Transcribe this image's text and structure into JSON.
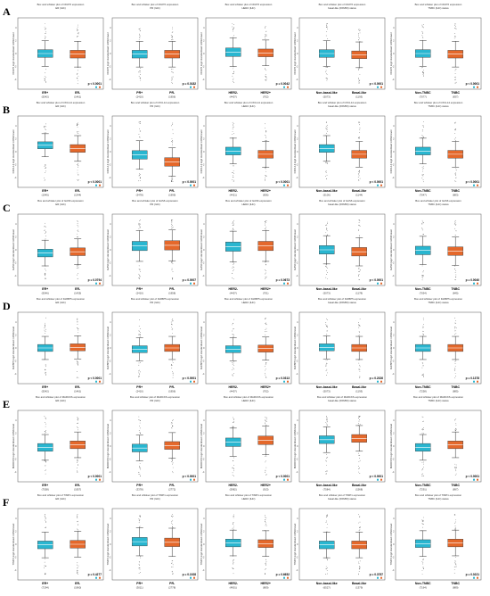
{
  "colors": {
    "group_a": "#29b6d0",
    "group_b": "#e4682b",
    "whisker": "#333333",
    "frame": "#555555",
    "dots": "#444444"
  },
  "rows": [
    {
      "letter": "A",
      "gene": "CD276",
      "panels": [
        {
          "title": "Box and whisker plot of CD276 expression",
          "subtitle": "ER (IHC)",
          "categories": [
            "ER+",
            "ER-"
          ],
          "ns": [
            "(5542)",
            "(1461)"
          ],
          "median": [
            0.0,
            -0.1
          ],
          "spread": [
            1.0,
            1.0
          ],
          "pval": "p < 0.0001"
        },
        {
          "title": "Box and whisker plot of CD276 expression",
          "subtitle": "PR (IHC)",
          "categories": [
            "PR+",
            "PR-"
          ],
          "ns": [
            "(2410)",
            "(1956)"
          ],
          "median": [
            -0.1,
            -0.1
          ],
          "spread": [
            1.0,
            1.0
          ],
          "pval": "p = 0.0182"
        },
        {
          "title": "Box and whisker plot of CD276 expression",
          "subtitle": "HER2 (IHC)",
          "categories": [
            "HER2-",
            "HER2+"
          ],
          "ns": [
            "(4407)",
            "(702)"
          ],
          "median": [
            0.2,
            0.1
          ],
          "spread": [
            1.1,
            1.0
          ],
          "pval": "p = 0.0042"
        },
        {
          "title": "Box and whisker plot of CD276 expression",
          "subtitle": "basal-like (PAM50) status",
          "categories": [
            "Non-basal-like",
            "Basal-like"
          ],
          "ns": [
            "(5073)",
            "(1193)"
          ],
          "median": [
            0.0,
            -0.2
          ],
          "spread": [
            1.0,
            1.0
          ],
          "pval": "p < 0.0001"
        },
        {
          "title": "Box and whisker plot of CD276 expression",
          "subtitle": "TNBC (IHC) status",
          "categories": [
            "Non-TNBC",
            "TNBC"
          ],
          "ns": [
            "(7077)",
            "(837)"
          ],
          "median": [
            0.0,
            -0.1
          ],
          "spread": [
            1.0,
            1.0
          ],
          "pval": "p < 0.0001"
        }
      ]
    },
    {
      "letter": "B",
      "gene": "CXCL14",
      "panels": [
        {
          "title": "Box and whisker plot of CXCL14 expression",
          "subtitle": "ER (IHC)",
          "categories": [
            "ER+",
            "ER-"
          ],
          "ns": [
            "(1945)",
            "(1344)"
          ],
          "median": [
            1.0,
            0.5
          ],
          "spread": [
            0.9,
            1.0
          ],
          "pval": "p < 0.0001"
        },
        {
          "title": "Box and whisker plot of CXCL14 expression",
          "subtitle": "PR (IHC)",
          "categories": [
            "PR+",
            "PR-"
          ],
          "ns": [
            "(3478)",
            "(1999)"
          ],
          "median": [
            -0.5,
            -1.6
          ],
          "spread": [
            1.1,
            1.1
          ],
          "pval": "p < 0.0001"
        },
        {
          "title": "Box and whisker plot of CXCL14 expression",
          "subtitle": "HER2 (IHC)",
          "categories": [
            "HER2-",
            "HER2+"
          ],
          "ns": [
            "(4421)",
            "(836)"
          ],
          "median": [
            0.1,
            -0.4
          ],
          "spread": [
            1.0,
            1.0
          ],
          "pval": "p < 0.0001"
        },
        {
          "title": "Box and whisker plot of CXCL14 expression",
          "subtitle": "basal-like (PAM50) status",
          "categories": [
            "Non-basal-like",
            "Basal-like"
          ],
          "ns": [
            "(5106)",
            "(1144)"
          ],
          "median": [
            0.5,
            -0.4
          ],
          "spread": [
            1.0,
            1.0
          ],
          "pval": "p < 0.0001"
        },
        {
          "title": "Box and whisker plot of CXCL14 expression",
          "subtitle": "TNBC (IHC) status",
          "categories": [
            "Non-TNBC",
            "TNBC"
          ],
          "ns": [
            "(7047)",
            "(883)"
          ],
          "median": [
            0.1,
            -0.4
          ],
          "spread": [
            1.0,
            1.0
          ],
          "pval": "p < 0.0001"
        }
      ]
    },
    {
      "letter": "C",
      "gene": "GAS6",
      "panels": [
        {
          "title": "Box and whisker plot of GAS6 expression",
          "subtitle": "ER (IHC)",
          "categories": [
            "ER+",
            "ER-"
          ],
          "ns": [
            "(5546)",
            "(1435)"
          ],
          "median": [
            -0.5,
            -0.3
          ],
          "spread": [
            1.0,
            1.0
          ],
          "pval": "p = 0.0794"
        },
        {
          "title": "Box and whisker plot of GAS6 expression",
          "subtitle": "PR (IHC)",
          "categories": [
            "PR+",
            "PR-"
          ],
          "ns": [
            "(2410)",
            "(1958)"
          ],
          "median": [
            0.6,
            0.7
          ],
          "spread": [
            1.2,
            1.2
          ],
          "pval": "p = 0.0007"
        },
        {
          "title": "Box and whisker plot of GAS6 expression",
          "subtitle": "HER2 (IHC)",
          "categories": [
            "HER2-",
            "HER2+"
          ],
          "ns": [
            "(4407)",
            "(701)"
          ],
          "median": [
            0.5,
            0.6
          ],
          "spread": [
            1.2,
            1.2
          ],
          "pval": "p = 0.0673"
        },
        {
          "title": "Box and whisker plot of GAS6 expression",
          "subtitle": "basal-like (PAM50) status",
          "categories": [
            "Non-basal-like",
            "Basal-like"
          ],
          "ns": [
            "(5073)",
            "(1178)"
          ],
          "median": [
            0.0,
            -0.3
          ],
          "spread": [
            1.1,
            1.1
          ],
          "pval": "p < 0.0001"
        },
        {
          "title": "Box and whisker plot of GAS6 expression",
          "subtitle": "TNBC (IHC) status",
          "categories": [
            "Non-TNBC",
            "TNBC"
          ],
          "ns": [
            "(7054)",
            "(845)"
          ],
          "median": [
            -0.1,
            -0.2
          ],
          "spread": [
            1.1,
            1.1
          ],
          "pval": "p = 0.0040"
        }
      ]
    },
    {
      "letter": "D",
      "gene": "IGFBP5",
      "panels": [
        {
          "title": "Box and whisker plot of IGFBP5 expression",
          "subtitle": "ER (IHC)",
          "categories": [
            "ER+",
            "ER-"
          ],
          "ns": [
            "(5542)",
            "(1461)"
          ],
          "median": [
            0.0,
            0.1
          ],
          "spread": [
            0.9,
            0.9
          ],
          "pval": "p < 0.0001"
        },
        {
          "title": "Box and whisker plot of IGFBP5 expression",
          "subtitle": "PR (IHC)",
          "categories": [
            "PR+",
            "PR-"
          ],
          "ns": [
            "(2410)",
            "(1956)"
          ],
          "median": [
            -0.2,
            0.0
          ],
          "spread": [
            0.9,
            0.9
          ],
          "pval": "p < 0.0001"
        },
        {
          "title": "Box and whisker plot of IGFBP5 expression",
          "subtitle": "HER2 (IHC)",
          "categories": [
            "HER2-",
            "HER2+"
          ],
          "ns": [
            "(4407)",
            "(702)"
          ],
          "median": [
            -0.2,
            -0.1
          ],
          "spread": [
            0.9,
            0.9
          ],
          "pval": "p = 0.0313"
        },
        {
          "title": "Box and whisker plot of IGFBP5 expression",
          "subtitle": "basal-like (PAM50) status",
          "categories": [
            "Non-basal-like",
            "Basal-like"
          ],
          "ns": [
            "(5073)",
            "(1193)"
          ],
          "median": [
            0.1,
            0.0
          ],
          "spread": [
            0.9,
            0.9
          ],
          "pval": "p = 0.2326"
        },
        {
          "title": "Box and whisker plot of IGFBP5 expression",
          "subtitle": "TNBC (IHC) status",
          "categories": [
            "Non-TNBC",
            "TNBC"
          ],
          "ns": [
            "(7258)",
            "(885)"
          ],
          "median": [
            0.0,
            0.0
          ],
          "spread": [
            0.9,
            0.9
          ],
          "pval": "p = 0.1378"
        }
      ]
    },
    {
      "letter": "E",
      "gene": "MARCKS",
      "panels": [
        {
          "title": "Box and whisker plot of MARCKS expression",
          "subtitle": "ER (IHC)",
          "categories": [
            "ER+",
            "ER-"
          ],
          "ns": [
            "(7558)",
            "(1957)"
          ],
          "median": [
            -0.2,
            0.2
          ],
          "spread": [
            1.0,
            1.0
          ],
          "pval": "p < 0.0001"
        },
        {
          "title": "Box and whisker plot of MARCKS expression",
          "subtitle": "PR (IHC)",
          "categories": [
            "PR+",
            "PR-"
          ],
          "ns": [
            "(3378)",
            "(2772)"
          ],
          "median": [
            -0.3,
            0.1
          ],
          "spread": [
            1.0,
            1.0
          ],
          "pval": "p < 0.0001"
        },
        {
          "title": "Box and whisker plot of MARCKS expression",
          "subtitle": "HER2 (IHC)",
          "categories": [
            "HER2-",
            "HER2+"
          ],
          "ns": [
            "(5982)",
            "(913)"
          ],
          "median": [
            0.6,
            0.9
          ],
          "spread": [
            1.1,
            1.1
          ],
          "pval": "p < 0.0001"
        },
        {
          "title": "Box and whisker plot of MARCKS expression",
          "subtitle": "basal-like (PAM50) status",
          "categories": [
            "Non-basal-like",
            "Basal-like"
          ],
          "ns": [
            "(7584)",
            "(1568)"
          ],
          "median": [
            1.0,
            1.2
          ],
          "spread": [
            1.0,
            1.0
          ],
          "pval": "p < 0.0001"
        },
        {
          "title": "Box and whisker plot of MARCKS expression",
          "subtitle": "TNBC (IHC) status",
          "categories": [
            "Non-TNBC",
            "TNBC"
          ],
          "ns": [
            "(7291)",
            "(897)"
          ],
          "median": [
            -0.2,
            0.2
          ],
          "spread": [
            1.0,
            1.0
          ],
          "pval": "p < 0.0001"
        }
      ]
    },
    {
      "letter": "F",
      "gene": "TIMP1",
      "panels": [
        {
          "title": "Box and whisker plot of TIMP1 expression",
          "subtitle": "ER (IHC)",
          "categories": [
            "ER+",
            "ER-"
          ],
          "ns": [
            "(7294)",
            "(1960)"
          ],
          "median": [
            -0.1,
            0.0
          ],
          "spread": [
            1.0,
            1.0
          ],
          "pval": "p = 0.4277"
        },
        {
          "title": "Box and whisker plot of TIMP1 expression",
          "subtitle": "PR (IHC)",
          "categories": [
            "PR+",
            "PR-"
          ],
          "ns": [
            "(3011)",
            "(2778)"
          ],
          "median": [
            0.4,
            0.3
          ],
          "spread": [
            1.1,
            1.1
          ],
          "pval": "p = 0.1928"
        },
        {
          "title": "Box and whisker plot of TIMP1 expression",
          "subtitle": "HER2 (IHC)",
          "categories": [
            "HER2-",
            "HER2+"
          ],
          "ns": [
            "(4901)",
            "(809)"
          ],
          "median": [
            0.2,
            0.1
          ],
          "spread": [
            1.0,
            1.0
          ],
          "pval": "p = 0.6652"
        },
        {
          "title": "Box and whisker plot of TIMP1 expression",
          "subtitle": "basal-like (PAM50) status",
          "categories": [
            "Non-basal-like",
            "Basal-like"
          ],
          "ns": [
            "(6527)",
            "(1379)"
          ],
          "median": [
            -0.1,
            -0.1
          ],
          "spread": [
            1.0,
            1.0
          ],
          "pval": "p = 0.3787"
        },
        {
          "title": "Box and whisker plot of TIMP1 expression",
          "subtitle": "TNBC (IHC) status",
          "categories": [
            "Non-TNBC",
            "TNBC"
          ],
          "ns": [
            "(7164)",
            "(889)"
          ],
          "median": [
            0.1,
            0.2
          ],
          "spread": [
            1.0,
            1.0
          ],
          "pval": "p = 0.0221"
        }
      ]
    }
  ],
  "chart_data": {
    "type": "box",
    "yticks": [
      "4",
      "2",
      "0",
      "-2",
      "-4"
    ],
    "ylim": [
      -5,
      5
    ],
    "layout": "6 rows x 5 columns of paired box plots"
  }
}
